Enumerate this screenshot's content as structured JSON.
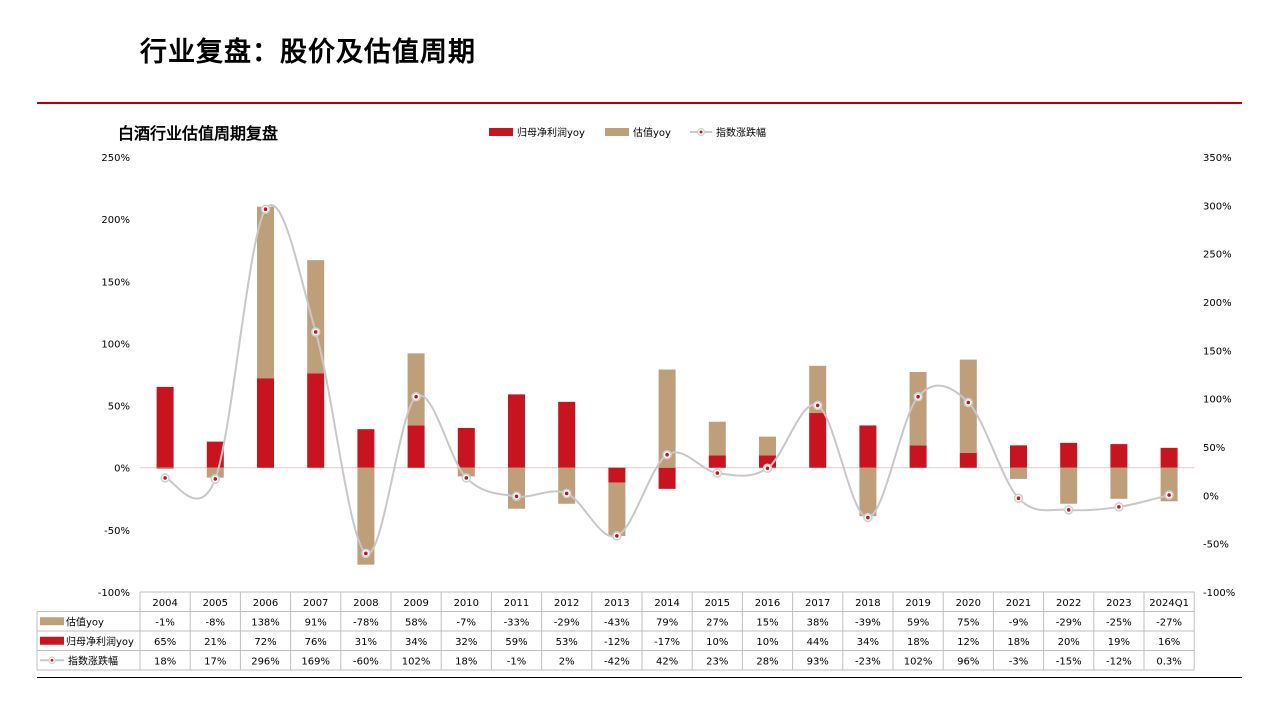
{
  "slide": {
    "title": "行业复盘：股价及估值周期"
  },
  "chart_data": {
    "type": "bar",
    "title": "白酒行业估值周期复盘",
    "categories": [
      "2004",
      "2005",
      "2006",
      "2007",
      "2008",
      "2009",
      "2010",
      "2011",
      "2012",
      "2013",
      "2014",
      "2015",
      "2016",
      "2017",
      "2018",
      "2019",
      "2020",
      "2021",
      "2022",
      "2023",
      "2024Q1"
    ],
    "series": [
      {
        "name": "估值yoy",
        "kind": "bar",
        "axis": "left",
        "color": "#bf9f7a",
        "values": [
          -1,
          -8,
          138,
          91,
          -78,
          58,
          -7,
          -33,
          -29,
          -43,
          79,
          27,
          15,
          38,
          -39,
          59,
          75,
          -9,
          -29,
          -25,
          -27
        ],
        "labels": [
          "-1%",
          "-8%",
          "138%",
          "91%",
          "-78%",
          "58%",
          "-7%",
          "-33%",
          "-29%",
          "-43%",
          "79%",
          "27%",
          "15%",
          "38%",
          "-39%",
          "59%",
          "75%",
          "-9%",
          "-29%",
          "-25%",
          "-27%"
        ]
      },
      {
        "name": "归母净利润yoy",
        "kind": "bar",
        "axis": "left",
        "color": "#c8141e",
        "values": [
          65,
          21,
          72,
          76,
          31,
          34,
          32,
          59,
          53,
          -12,
          -17,
          10,
          10,
          44,
          34,
          18,
          12,
          18,
          20,
          19,
          16
        ],
        "labels": [
          "65%",
          "21%",
          "72%",
          "76%",
          "31%",
          "34%",
          "32%",
          "59%",
          "53%",
          "-12%",
          "-17%",
          "10%",
          "10%",
          "44%",
          "34%",
          "18%",
          "12%",
          "18%",
          "20%",
          "19%",
          "16%"
        ]
      },
      {
        "name": "指数涨跌幅",
        "kind": "line",
        "axis": "right",
        "color": "#c8c8c8",
        "values": [
          18,
          17,
          296,
          169,
          -60,
          102,
          18,
          -1,
          2,
          -42,
          42,
          23,
          28,
          93,
          -23,
          102,
          96,
          -3,
          -15,
          -12,
          0.3
        ],
        "labels": [
          "18%",
          "17%",
          "296%",
          "169%",
          "-60%",
          "102%",
          "18%",
          "-1%",
          "2%",
          "-42%",
          "42%",
          "23%",
          "28%",
          "93%",
          "-23%",
          "102%",
          "96%",
          "-3%",
          "-15%",
          "-12%",
          "0.3%"
        ]
      }
    ],
    "y_left": {
      "range": [
        -100,
        250
      ],
      "ticks": [
        "-100%",
        "-50%",
        "0%",
        "50%",
        "100%",
        "150%",
        "200%",
        "250%"
      ]
    },
    "y_right": {
      "range": [
        -100,
        350
      ],
      "ticks": [
        "-100%",
        "-50%",
        "0%",
        "50%",
        "100%",
        "150%",
        "200%",
        "250%",
        "300%",
        "350%"
      ]
    },
    "legend": {
      "position": "top-center"
    },
    "grid": false
  }
}
